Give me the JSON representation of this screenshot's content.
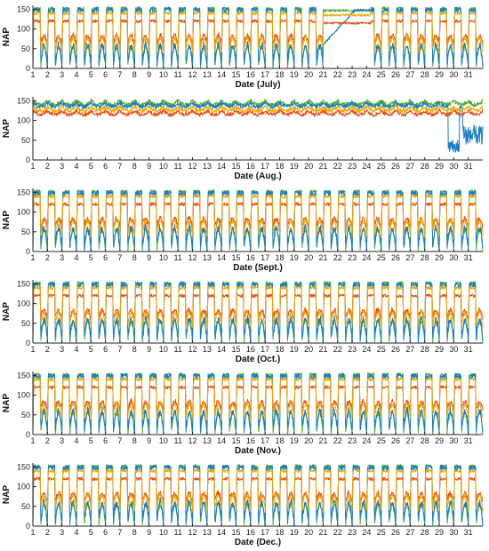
{
  "figure": {
    "ylabel": "NAP"
  },
  "colors": {
    "green": "#4daf2f",
    "blue": "#1a7cc7",
    "red": "#e4531b",
    "orange": "#f2a900",
    "axis": "#222222"
  },
  "chart_data": [
    {
      "type": "line",
      "xlabel": "Date (July)",
      "ylabel": "NAP",
      "ylim": [
        0,
        150
      ],
      "yticks": [
        0,
        50,
        100,
        150
      ],
      "x_range": [
        1,
        32
      ],
      "xticks": [
        "1",
        "2",
        "3",
        "4",
        "5",
        "6",
        "7",
        "8",
        "9",
        "10",
        "11",
        "12",
        "13",
        "14",
        "15",
        "16",
        "17",
        "18",
        "19",
        "20",
        "21",
        "22",
        "23",
        "24",
        "25",
        "26",
        "27",
        "28",
        "29",
        "30",
        "31"
      ],
      "grid": false,
      "series": [
        {
          "color": "green",
          "daytime_plateau": 152,
          "night_trough": 0
        },
        {
          "color": "blue",
          "daytime_plateau": 148,
          "night_trough": 5
        },
        {
          "color": "red",
          "daytime_plateau": 120,
          "night_trough": 60
        },
        {
          "color": "orange",
          "daytime_plateau": 140,
          "night_trough": 40
        }
      ],
      "notes": "Days 21 to 24 stay at daytime levels (no night dip)."
    },
    {
      "type": "line",
      "xlabel": "Date (Aug.)",
      "ylabel": "NAP",
      "ylim": [
        0,
        150
      ],
      "yticks": [
        0,
        50,
        100,
        150
      ],
      "x_range": [
        1,
        32
      ],
      "xticks": [
        "1",
        "2",
        "3",
        "4",
        "5",
        "6",
        "7",
        "8",
        "9",
        "10",
        "11",
        "12",
        "13",
        "14",
        "15",
        "16",
        "17",
        "18",
        "19",
        "20",
        "21",
        "22",
        "23",
        "24",
        "25",
        "26",
        "27",
        "28",
        "29",
        "30",
        "31"
      ],
      "grid": false,
      "series": [
        {
          "color": "green",
          "daytime_plateau": 150,
          "night_trough": 130
        },
        {
          "color": "blue",
          "daytime_plateau": 145,
          "night_trough": 110
        },
        {
          "color": "red",
          "daytime_plateau": 125,
          "night_trough": 120
        },
        {
          "color": "orange",
          "daytime_plateau": 135,
          "night_trough": 130
        }
      ],
      "notes": "Mostly flat around 120-150; blue drops sharply near day 30."
    },
    {
      "type": "line",
      "xlabel": "Date (Sept.)",
      "ylabel": "NAP",
      "ylim": [
        0,
        150
      ],
      "yticks": [
        0,
        50,
        100,
        150
      ],
      "x_range": [
        1,
        32
      ],
      "xticks": [
        "1",
        "2",
        "3",
        "4",
        "5",
        "6",
        "7",
        "8",
        "9",
        "10",
        "11",
        "12",
        "13",
        "14",
        "15",
        "16",
        "17",
        "18",
        "19",
        "20",
        "21",
        "22",
        "23",
        "24",
        "25",
        "26",
        "27",
        "28",
        "29",
        "30",
        "31"
      ],
      "grid": false,
      "series": [
        {
          "color": "green",
          "daytime_plateau": 152,
          "night_trough": 0
        },
        {
          "color": "blue",
          "daytime_plateau": 148,
          "night_trough": 5
        },
        {
          "color": "red",
          "daytime_plateau": 120,
          "night_trough": 60
        },
        {
          "color": "orange",
          "daytime_plateau": 140,
          "night_trough": 40
        }
      ]
    },
    {
      "type": "line",
      "xlabel": "Date (Oct.)",
      "ylabel": "NAP",
      "ylim": [
        0,
        150
      ],
      "yticks": [
        0,
        50,
        100,
        150
      ],
      "x_range": [
        1,
        32
      ],
      "xticks": [
        "1",
        "2",
        "3",
        "4",
        "5",
        "6",
        "7",
        "8",
        "9",
        "10",
        "11",
        "12",
        "13",
        "14",
        "15",
        "16",
        "17",
        "18",
        "19",
        "20",
        "21",
        "22",
        "23",
        "24",
        "25",
        "26",
        "27",
        "28",
        "29",
        "30",
        "31"
      ],
      "grid": false,
      "series": [
        {
          "color": "green",
          "daytime_plateau": 152,
          "night_trough": 0
        },
        {
          "color": "blue",
          "daytime_plateau": 148,
          "night_trough": 5
        },
        {
          "color": "red",
          "daytime_plateau": 120,
          "night_trough": 60
        },
        {
          "color": "orange",
          "daytime_plateau": 140,
          "night_trough": 40
        }
      ]
    },
    {
      "type": "line",
      "xlabel": "Date (Nov.)",
      "ylabel": "NAP",
      "ylim": [
        0,
        150
      ],
      "yticks": [
        0,
        50,
        100,
        150
      ],
      "x_range": [
        1,
        32
      ],
      "xticks": [
        "1",
        "2",
        "3",
        "4",
        "5",
        "6",
        "7",
        "8",
        "9",
        "10",
        "11",
        "12",
        "13",
        "14",
        "15",
        "16",
        "17",
        "18",
        "19",
        "20",
        "21",
        "22",
        "23",
        "24",
        "25",
        "26",
        "27",
        "28",
        "29",
        "30",
        "31"
      ],
      "grid": false,
      "series": [
        {
          "color": "green",
          "daytime_plateau": 152,
          "night_trough": 0
        },
        {
          "color": "blue",
          "daytime_plateau": 148,
          "night_trough": 5
        },
        {
          "color": "red",
          "daytime_plateau": 120,
          "night_trough": 60
        },
        {
          "color": "orange",
          "daytime_plateau": 140,
          "night_trough": 40
        }
      ]
    },
    {
      "type": "line",
      "xlabel": "Date (Dec.)",
      "ylabel": "NAP",
      "ylim": [
        0,
        150
      ],
      "yticks": [
        0,
        50,
        100,
        150
      ],
      "x_range": [
        1,
        32
      ],
      "xticks": [
        "1",
        "2",
        "3",
        "4",
        "5",
        "6",
        "7",
        "8",
        "9",
        "10",
        "11",
        "12",
        "13",
        "14",
        "15",
        "16",
        "17",
        "18",
        "19",
        "20",
        "21",
        "22",
        "23",
        "24",
        "25",
        "26",
        "27",
        "28",
        "29",
        "30",
        "31"
      ],
      "grid": false,
      "series": [
        {
          "color": "green",
          "daytime_plateau": 152,
          "night_trough": 0
        },
        {
          "color": "blue",
          "daytime_plateau": 148,
          "night_trough": 5
        },
        {
          "color": "red",
          "daytime_plateau": 120,
          "night_trough": 60
        },
        {
          "color": "orange",
          "daytime_plateau": 140,
          "night_trough": 40
        }
      ]
    }
  ]
}
